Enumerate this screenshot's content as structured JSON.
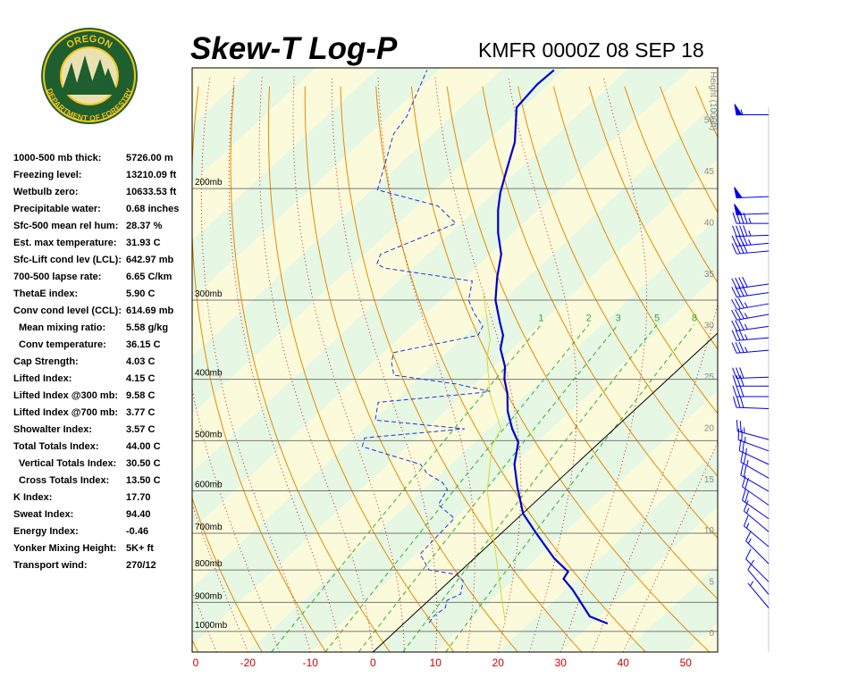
{
  "logo": {
    "top": "OREGON",
    "bottom": "DEPARTMENT OF FORESTRY"
  },
  "stats": [
    {
      "label": "1000-500 mb thick:",
      "value": "5726.00 m",
      "indent": false
    },
    {
      "label": "Freezing level:",
      "value": "13210.09 ft",
      "indent": false
    },
    {
      "label": "Wetbulb zero:",
      "value": "10633.53 ft",
      "indent": false
    },
    {
      "label": "Precipitable water:",
      "value": "0.68 inches",
      "indent": false
    },
    {
      "label": "Sfc-500 mean rel hum:",
      "value": "28.37 %",
      "indent": false
    },
    {
      "label": "Est. max temperature:",
      "value": "31.93 C",
      "indent": false
    },
    {
      "label": "Sfc-Lift cond lev (LCL):",
      "value": "642.97 mb",
      "indent": false
    },
    {
      "label": "700-500 lapse rate:",
      "value": "6.65 C/km",
      "indent": false
    },
    {
      "label": "ThetaE index:",
      "value": "5.90 C",
      "indent": false
    },
    {
      "label": "Conv cond level (CCL):",
      "value": "614.69 mb",
      "indent": false
    },
    {
      "label": "Mean mixing ratio:",
      "value": "5.58 g/kg",
      "indent": true
    },
    {
      "label": "Conv temperature:",
      "value": "36.15 C",
      "indent": true
    },
    {
      "label": "Cap Strength:",
      "value": "4.03 C",
      "indent": false
    },
    {
      "label": "Lifted Index:",
      "value": "4.15 C",
      "indent": false
    },
    {
      "label": "Lifted Index @300 mb:",
      "value": "9.58 C",
      "indent": false
    },
    {
      "label": "Lifted Index @700 mb:",
      "value": "3.77 C",
      "indent": false
    },
    {
      "label": "Showalter Index:",
      "value": "3.57 C",
      "indent": false
    },
    {
      "label": "Total Totals Index:",
      "value": "44.00 C",
      "indent": false
    },
    {
      "label": "Vertical Totals Index:",
      "value": "30.50 C",
      "indent": true
    },
    {
      "label": "Cross Totals Index:",
      "value": "13.50 C",
      "indent": true
    },
    {
      "label": "K Index:",
      "value": "17.70",
      "indent": false
    },
    {
      "label": "Sweat Index:",
      "value": "94.40",
      "indent": false
    },
    {
      "label": "Energy Index:",
      "value": "-0.46",
      "indent": false
    },
    {
      "label": "Yonker Mixing Height:",
      "value": "5K+ ft",
      "indent": false
    },
    {
      "label": "Transport wind:",
      "value": "270/12",
      "indent": false
    }
  ],
  "chart_data": {
    "type": "skewt",
    "title": "Skew-T Log-P",
    "subtitle": "KMFR 0000Z 08 SEP 18",
    "xlim": [
      -28.9,
      55.1
    ],
    "xticks": [
      -20,
      -10,
      0,
      10,
      20,
      30,
      40,
      50
    ],
    "left_edge_label": "0",
    "ylim": [
      1078,
      129
    ],
    "log_y": true,
    "yticks": [
      {
        "value": 200,
        "label": "200mb"
      },
      {
        "value": 300,
        "label": "300mb"
      },
      {
        "value": 400,
        "label": "400mb"
      },
      {
        "value": 500,
        "label": "500mb"
      },
      {
        "value": 600,
        "label": "600mb"
      },
      {
        "value": 700,
        "label": "700mb"
      },
      {
        "value": 800,
        "label": "800mb"
      },
      {
        "value": 900,
        "label": "900mb"
      },
      {
        "value": 1000,
        "label": "1000mb"
      }
    ],
    "y2label": "Height (1000ft)",
    "y2lim": [
      -1.9,
      55
    ],
    "y2ticks": [
      0,
      5,
      10,
      15,
      20,
      25,
      30,
      35,
      40,
      45,
      50
    ],
    "mixing_ratios": [
      1,
      2,
      3,
      5,
      8
    ],
    "temperature": {
      "color": "#0000cc",
      "pressure": [
        972,
        947,
        859,
        826,
        805,
        767,
        702,
        652,
        591,
        545,
        503,
        479,
        449,
        421,
        400,
        382,
        358,
        341,
        325,
        300,
        276,
        254,
        235,
        216,
        203,
        187,
        169,
        149,
        137,
        130
      ],
      "values": [
        32.6,
        28.5,
        21.1,
        17.8,
        17.3,
        12.8,
        5.8,
        0.1,
        -5.5,
        -9.8,
        -13.0,
        -16.3,
        -20.1,
        -23.2,
        -26.1,
        -28.2,
        -32.0,
        -33.9,
        -36.7,
        -41.2,
        -44.9,
        -48.2,
        -52.4,
        -56.4,
        -59.0,
        -61.9,
        -65.4,
        -71.1,
        -71.8,
        -71.6
      ]
    },
    "dewpoint": {
      "color": "#2233dd",
      "pressure": [
        969,
        947,
        917,
        894,
        873,
        832,
        813,
        800,
        755,
        663,
        631,
        597,
        582,
        564,
        545,
        511,
        495,
        479,
        464,
        435,
        421,
        418,
        407,
        394,
        376,
        363,
        341,
        330,
        314,
        300,
        280,
        267,
        263,
        254,
        227,
        213,
        201,
        164,
        154,
        130
      ],
      "values": [
        3.9,
        3.5,
        3.9,
        2.9,
        4.0,
        2.1,
        -0.1,
        -5.2,
        -9.4,
        -10.1,
        -15.0,
        -16.2,
        -18.2,
        -22.1,
        -24.8,
        -37.2,
        -38.3,
        -23.9,
        -39.7,
        -42.3,
        -28.6,
        -26.3,
        -33.0,
        -44.5,
        -47.1,
        -48.4,
        -37.9,
        -38.7,
        -42.5,
        -45.5,
        -48.2,
        -64.5,
        -66.4,
        -67.5,
        -60.8,
        -66.7,
        -79.1,
        -86.2,
        -87.1,
        -91.9
      ]
    },
    "wetbulb": {
      "color": "#d8d830",
      "pressure": [
        962,
        859,
        755,
        601,
        511,
        479,
        421,
        370,
        346,
        294
      ],
      "values": [
        15.7,
        9.6,
        2.7,
        -9.5,
        -16.5,
        -18.1,
        -26.0,
        -32.6,
        -35.3,
        -44.1
      ]
    },
    "winds": {
      "color": "#0000ee",
      "pressure": [
        153,
        206,
        219,
        227,
        237,
        244,
        251,
        283,
        292,
        304,
        316,
        330,
        344,
        360,
        397,
        410,
        426,
        445,
        498,
        519,
        545,
        573,
        601,
        632,
        664,
        696,
        735,
        782,
        835,
        874,
        918
      ],
      "direction": [
        270,
        268,
        268,
        270,
        268,
        265,
        265,
        262,
        262,
        260,
        260,
        262,
        265,
        265,
        268,
        270,
        270,
        272,
        285,
        290,
        295,
        300,
        300,
        305,
        305,
        310,
        310,
        315,
        315,
        320,
        320
      ],
      "speed": [
        55,
        50,
        50,
        45,
        45,
        45,
        40,
        40,
        40,
        35,
        35,
        35,
        35,
        35,
        30,
        30,
        30,
        30,
        25,
        25,
        25,
        25,
        20,
        20,
        20,
        15,
        15,
        15,
        10,
        10,
        5
      ]
    }
  }
}
